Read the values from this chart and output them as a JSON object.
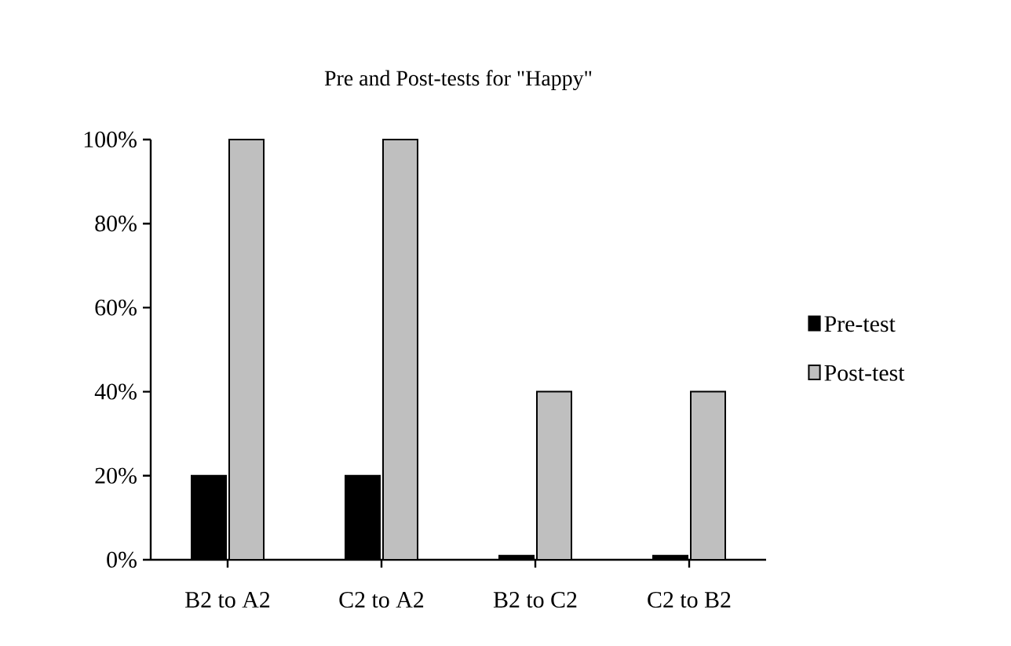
{
  "chart_data": {
    "type": "bar",
    "title": "Pre and Post-tests for \"Happy\"",
    "categories": [
      "B2 to A2",
      "C2 to A2",
      "B2 to C2",
      "C2 to B2"
    ],
    "series": [
      {
        "name": "Pre-test",
        "color": "#000000",
        "values": [
          20,
          20,
          1,
          1
        ]
      },
      {
        "name": "Post-test",
        "color": "#bfbfbf",
        "values": [
          100,
          100,
          40,
          40
        ]
      }
    ],
    "ylim": [
      0,
      100
    ],
    "yticks": [
      {
        "value": 0,
        "label": "0%"
      },
      {
        "value": 20,
        "label": "20%"
      },
      {
        "value": 40,
        "label": "40%"
      },
      {
        "value": 60,
        "label": "60%"
      },
      {
        "value": 80,
        "label": "80%"
      },
      {
        "value": 100,
        "label": "100%"
      }
    ],
    "legend": "right"
  }
}
